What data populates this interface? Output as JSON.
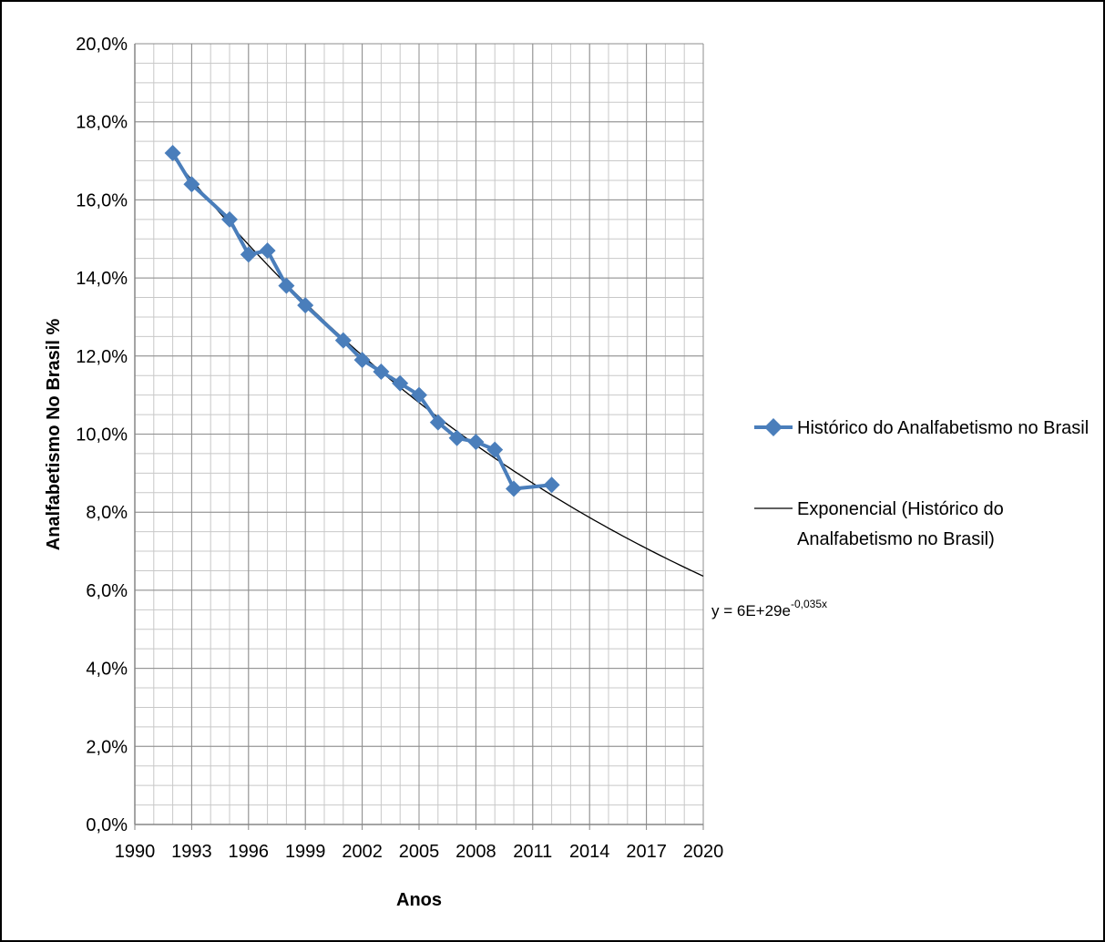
{
  "chart_data": {
    "type": "line",
    "title": "",
    "xlabel": "Anos",
    "ylabel": "Analfabetismo No Brasil %",
    "xlim": [
      1990,
      2020
    ],
    "ylim": [
      0,
      20
    ],
    "x_ticks": [
      "1990",
      "1993",
      "1996",
      "1999",
      "2002",
      "2005",
      "2008",
      "2011",
      "2014",
      "2017",
      "2020"
    ],
    "y_ticks": [
      "0,0%",
      "2,0%",
      "4,0%",
      "6,0%",
      "8,0%",
      "10,0%",
      "12,0%",
      "14,0%",
      "16,0%",
      "18,0%",
      "20,0%"
    ],
    "grid": true,
    "legend_position": "right",
    "series": [
      {
        "name": "Histórico do Analfabetismo no Brasil",
        "color": "#4a7ebb",
        "marker": "diamond",
        "points": [
          [
            1992,
            17.2
          ],
          [
            1993,
            16.4
          ],
          [
            1995,
            15.5
          ],
          [
            1996,
            14.6
          ],
          [
            1997,
            14.7
          ],
          [
            1998,
            13.8
          ],
          [
            1999,
            13.3
          ],
          [
            2001,
            12.4
          ],
          [
            2002,
            11.9
          ],
          [
            2003,
            11.6
          ],
          [
            2004,
            11.3
          ],
          [
            2005,
            11.0
          ],
          [
            2006,
            10.3
          ],
          [
            2007,
            9.9
          ],
          [
            2008,
            9.8
          ],
          [
            2009,
            9.6
          ],
          [
            2010,
            8.6
          ],
          [
            2012,
            8.7
          ]
        ]
      }
    ],
    "trendline": {
      "name": "Exponencial (Histórico do Analfabetismo no Brasil)",
      "name_line1": "Exponencial (Histórico do",
      "name_line2": "Analfabetismo no Brasil)",
      "type": "exponential",
      "color": "#000000",
      "x_range": [
        1992,
        2020
      ],
      "equation_prefix": "y = 6E+29e",
      "equation_exponent": "-0,035x"
    }
  }
}
